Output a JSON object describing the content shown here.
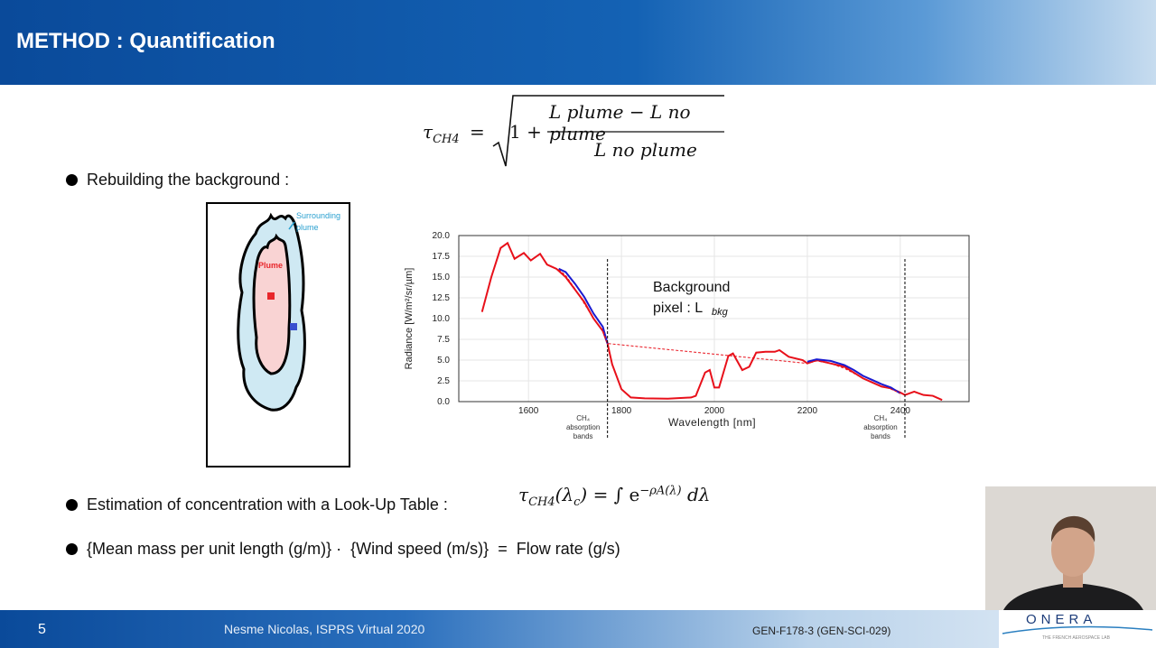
{
  "header": {
    "title": "METHOD : Quantification"
  },
  "formula_top": {
    "lhs": "τ",
    "lhs_sub": "CH4",
    "eq": "=",
    "one_plus": "1 +",
    "numerator": "L plume − L no plume",
    "denominator": "L no plume"
  },
  "bullets": [
    {
      "text": "Rebuilding the background :"
    },
    {
      "text": "Estimation of concentration with a Look-Up Table :"
    },
    {
      "text": "{Mean mass per unit length (g/m)} ·  {Wind speed (m/s)}  =  Flow rate (g/s)"
    }
  ],
  "formula_lut": {
    "lhs": "τ",
    "lhs_sub": "CH4",
    "arg": "(λ",
    "arg_sub": "c",
    ", ": "",
    "rhs": "= ∫ e",
    "exp": "−ρA(λ)",
    "dl": "dλ"
  },
  "diagram": {
    "plume_label": "Plume",
    "surrounding_label_1": "Surrounding",
    "surrounding_label_2": "plume",
    "colors": {
      "plume": "#f9d3d3",
      "surrounding": "#cfe9f3",
      "plume_pixel": "#e8262b",
      "bg_pixel": "#3a4fcf"
    }
  },
  "chart_data": {
    "type": "line",
    "xlabel": "Wavelength [nm]",
    "ylabel": "Radiance [W/m²/sr/µm]",
    "xlim": [
      1450,
      2548
    ],
    "ylim": [
      0,
      20
    ],
    "xticks": [
      1600,
      1800,
      2000,
      2200,
      2400
    ],
    "yticks": [
      "0.0",
      "2.5",
      "5.0",
      "7.5",
      "10.0",
      "12.5",
      "15.0",
      "17.5",
      "20.0"
    ],
    "annotation_1": "Background",
    "annotation_2": "pixel : L",
    "annotation_sub": "bkg",
    "band_label": [
      "CH₄",
      "absorption",
      "bands"
    ],
    "band_lines": [
      1770,
      2410
    ],
    "series": [
      {
        "name": "plume radiance",
        "color": "#e8101a",
        "x": [
          1500,
          1520,
          1540,
          1555,
          1570,
          1590,
          1605,
          1625,
          1640,
          1660,
          1680,
          1700,
          1720,
          1740,
          1760,
          1770,
          1780,
          1800,
          1820,
          1850,
          1900,
          1950,
          1960,
          1980,
          1990,
          2000,
          2010,
          2030,
          2040,
          2060,
          2075,
          2090,
          2110,
          2130,
          2140,
          2160,
          2190,
          2200,
          2220,
          2250,
          2280,
          2300,
          2320,
          2340,
          2360,
          2380,
          2400,
          2410,
          2430,
          2450,
          2470,
          2490
        ],
        "y": [
          10.8,
          15,
          18.5,
          19.1,
          17.2,
          17.9,
          17,
          17.8,
          16.5,
          16,
          15,
          13.5,
          12,
          10,
          8.5,
          7,
          4.5,
          1.5,
          0.5,
          0.4,
          0.35,
          0.5,
          0.7,
          3.5,
          3.8,
          1.7,
          1.7,
          5.5,
          5.8,
          3.8,
          4.2,
          5.9,
          6,
          6,
          6.2,
          5.4,
          5,
          4.6,
          5,
          4.6,
          4.2,
          3.5,
          2.8,
          2.3,
          1.8,
          1.6,
          1.1,
          0.8,
          1.2,
          0.8,
          0.7,
          0.2
        ]
      },
      {
        "name": "background fit 1",
        "color": "#1a1ad0",
        "x": [
          1665,
          1680,
          1700,
          1720,
          1740,
          1760,
          1770
        ],
        "y": [
          16,
          15.6,
          14.2,
          12.6,
          10.6,
          9,
          7
        ]
      },
      {
        "name": "background fit 2",
        "color": "#1a1ad0",
        "x": [
          2200,
          2220,
          2250,
          2280,
          2300,
          2320,
          2340,
          2360,
          2380,
          2400
        ],
        "y": [
          4.8,
          5.1,
          4.9,
          4.4,
          3.8,
          3.1,
          2.6,
          2.1,
          1.7,
          1.0
        ]
      },
      {
        "name": "dashed",
        "color": "#e8101a",
        "dashed": true,
        "x": [
          1665,
          1680,
          1700,
          1720,
          1740,
          1760,
          1770,
          2200,
          2220,
          2250,
          2280,
          2300,
          2320,
          2340,
          2360,
          2380,
          2400
        ],
        "y": [
          15.9,
          15.2,
          13.6,
          11.8,
          10,
          8.6,
          7,
          4.6,
          4.9,
          4.6,
          4.0,
          3.4,
          2.8,
          2.3,
          1.9,
          1.5,
          1.0
        ]
      }
    ]
  },
  "footer": {
    "page": "5",
    "author": "Nesme Nicolas, ISPRS Virtual 2020",
    "code": "GEN-F178-3 (GEN-SCI-029)",
    "logo": "ONERA",
    "logo_tagline": "THE FRENCH AEROSPACE LAB"
  }
}
